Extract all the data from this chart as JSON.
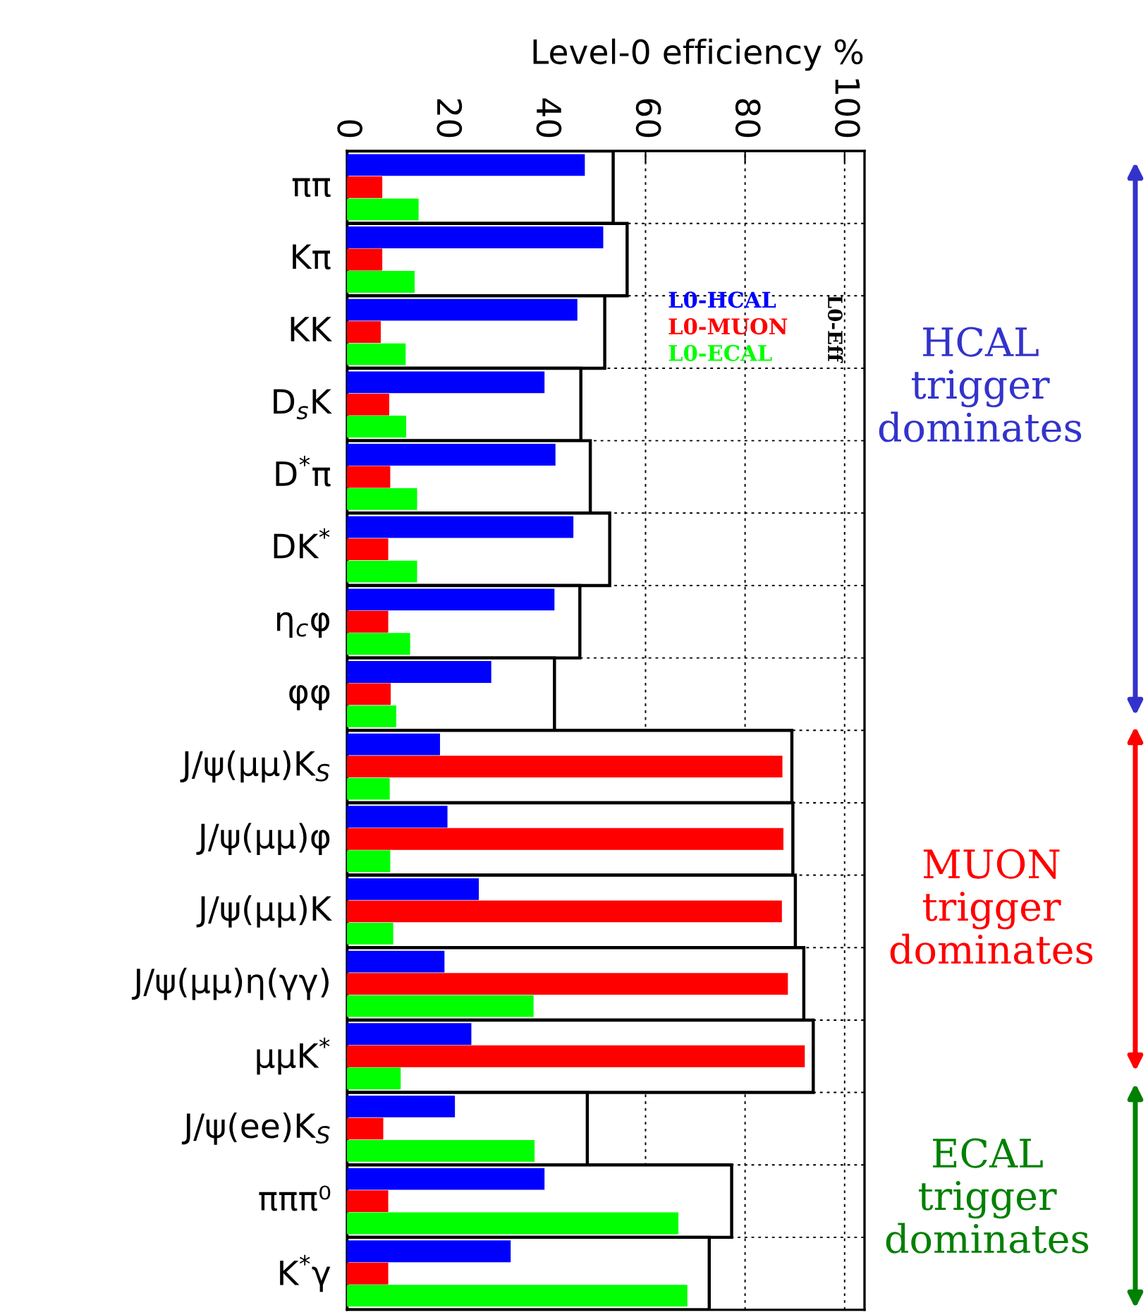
{
  "chart_data": {
    "type": "bar",
    "orientation": "horizontal",
    "xlabel": "Level-0 efficiency %",
    "categories": [
      "ππ",
      "Kπ",
      "KK",
      "D$_{s}$K",
      "D$^{*}$π",
      "DK$^{*}$",
      "η$_{c}$φ",
      "φφ",
      "J/ψ(μμ)K$_{S}$",
      "J/ψ(μμ)φ",
      "J/ψ(μμ)K",
      "J/ψ(μμ)η(γγ)",
      "μμK$^{*}$",
      "J/ψ(ee)K$_{S}$",
      "πππ⁰",
      "K$^{*}$γ"
    ],
    "series": [
      {
        "name": "L0-Eff",
        "color": "#ffffff",
        "values": [
          53.5,
          56.3,
          51.8,
          47.0,
          48.9,
          52.8,
          46.8,
          41.7,
          89.4,
          89.6,
          90.1,
          91.8,
          93.7,
          48.3,
          77.3,
          72.8
        ]
      },
      {
        "name": "L0-HCAL",
        "color": "#0000ff",
        "values": [
          47.8,
          51.5,
          46.3,
          39.7,
          41.9,
          45.5,
          41.7,
          29.0,
          18.7,
          20.2,
          26.5,
          19.6,
          25.0,
          21.7,
          39.7,
          32.9
        ]
      },
      {
        "name": "L0-MUON",
        "color": "#ff0000",
        "values": [
          7.1,
          7.1,
          6.8,
          8.5,
          8.7,
          8.3,
          8.3,
          8.8,
          87.5,
          87.7,
          87.4,
          88.6,
          92.0,
          7.3,
          8.3,
          8.3
        ]
      },
      {
        "name": "L0-ECAL",
        "color": "#00ff00",
        "values": [
          14.4,
          13.6,
          11.8,
          11.9,
          14.1,
          14.1,
          12.7,
          9.9,
          8.6,
          8.7,
          9.3,
          37.5,
          10.8,
          37.7,
          66.6,
          68.4
        ]
      }
    ],
    "xlim": [
      0,
      104
    ],
    "xticks": [
      0,
      20,
      40,
      60,
      80,
      100
    ],
    "grid": true,
    "legend": "top right",
    "annotations": [
      "HCAL\ntrigger\ndominates",
      "MUON\ntrigger\ndominates",
      "ECAL\ntrigger\ndominates"
    ]
  }
}
